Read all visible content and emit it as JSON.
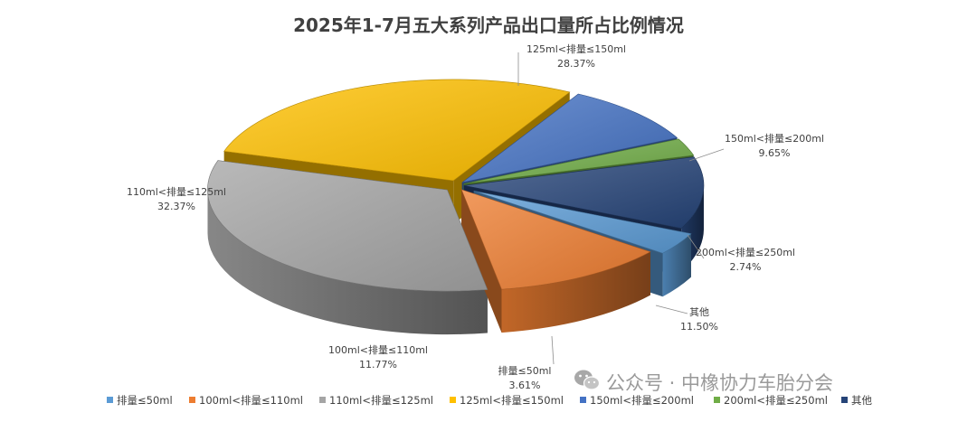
{
  "chart_data": {
    "type": "pie",
    "title": "2025年1-7月五大系列产品出口量所占比例情况",
    "categories": [
      "排量≤50ml",
      "100ml<排量≤110ml",
      "110ml<排量≤125ml",
      "125ml<排量≤150ml",
      "150ml<排量≤200ml",
      "200ml<排量≤250ml",
      "其他"
    ],
    "values": [
      3.61,
      11.77,
      32.37,
      28.37,
      9.65,
      2.74,
      11.5
    ],
    "value_labels": [
      "3.61%",
      "11.77%",
      "32.37%",
      "28.37%",
      "9.65%",
      "2.74%",
      "11.50%"
    ],
    "colors": [
      "#5b9bd5",
      "#ed7d31",
      "#a5a5a5",
      "#ffc000",
      "#4472c4",
      "#70ad47",
      "#264478"
    ],
    "style": "3d-exploded-pie",
    "legend_position": "bottom"
  },
  "watermark": {
    "text": "公众号 · 中橡协力车胎分会",
    "icon": "wechat-icon"
  }
}
